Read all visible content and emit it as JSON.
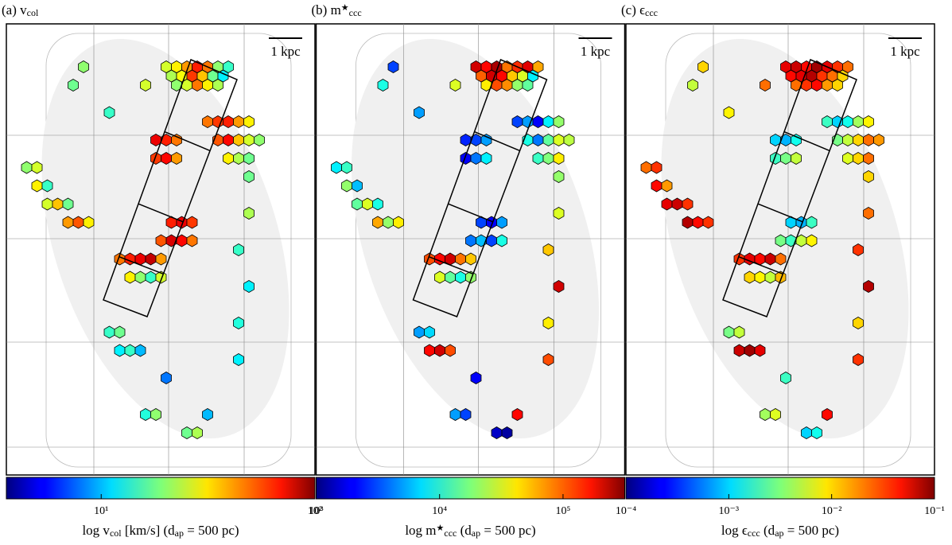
{
  "chart_data": [
    {
      "type": "hexmap",
      "title_parts": [
        "(a) v",
        {
          "sub": "col"
        }
      ],
      "scale_label": "1 kpc",
      "label_parts": [
        "log v",
        {
          "sub": "col"
        },
        " [km/s] (d",
        {
          "sub": "ap"
        },
        " = 500 pc)"
      ],
      "log_scale": true,
      "colormap": "jet",
      "xlim": [
        3.6,
        100
      ],
      "xticks": [
        {
          "value": 10,
          "label": "10¹"
        },
        {
          "value": 100,
          "label": "10²"
        }
      ],
      "values": [
        25,
        30,
        40,
        60,
        45,
        20,
        15,
        22,
        28,
        55,
        35,
        18,
        12,
        20,
        25,
        45,
        30,
        22,
        20,
        18,
        15,
        25,
        45,
        55,
        60,
        40,
        30,
        50,
        65,
        35,
        25,
        20,
        30,
        22,
        18,
        70,
        60,
        45,
        55,
        65,
        40,
        20,
        25,
        30,
        15,
        25,
        35,
        18,
        40,
        50,
        30,
        60,
        70,
        55,
        50,
        75,
        65,
        45,
        45,
        60,
        70,
        80,
        40,
        30,
        20,
        15,
        25,
        18,
        22,
        15,
        12,
        14,
        15,
        18,
        12,
        15,
        10,
        8,
        14,
        20,
        18,
        22,
        12,
        10
      ]
    },
    {
      "type": "hexmap",
      "title_parts": [
        "(b) m",
        {
          "sup": "★"
        },
        {
          "sub": "ccc"
        }
      ],
      "scale_label": "1 kpc",
      "label_parts": [
        "log m",
        {
          "sup": "★"
        },
        {
          "sub": "ccc"
        },
        " (d",
        {
          "sub": "ap"
        },
        " = 500 pc)"
      ],
      "log_scale": true,
      "colormap": "jet",
      "xlim": [
        1000,
        316000
      ],
      "xticks": [
        {
          "value": 1000,
          "label": "10³"
        },
        {
          "value": 10000,
          "label": "10⁴"
        },
        {
          "value": 100000,
          "label": "10⁵"
        }
      ],
      "values": [
        200000,
        150000,
        250000,
        80000,
        120000,
        180000,
        60000,
        90000,
        200000,
        150000,
        50000,
        30000,
        8000,
        40000,
        100000,
        70000,
        20000,
        15000,
        3000,
        10000,
        5000,
        30000,
        3000,
        5000,
        2000,
        8000,
        20000,
        10000,
        4000,
        15000,
        30000,
        25000,
        12000,
        18000,
        40000,
        2500,
        3000,
        5000,
        2000,
        4000,
        8000,
        8000,
        12000,
        20000,
        6000,
        15000,
        30000,
        10000,
        60000,
        20000,
        40000,
        3000,
        2000,
        5000,
        4000,
        6000,
        3000,
        10000,
        100000,
        150000,
        200000,
        80000,
        50000,
        30000,
        15000,
        10000,
        20000,
        20000,
        30000,
        50000,
        200000,
        40000,
        5000,
        7000,
        150000,
        200000,
        100000,
        2000,
        5000,
        3000,
        1500,
        1200,
        100000,
        150000
      ]
    },
    {
      "type": "hexmap",
      "title_parts": [
        "(c) ϵ",
        {
          "sub": "ccc"
        }
      ],
      "scale_label": "1 kpc",
      "label_parts": [
        "log ϵ",
        {
          "sub": "ccc"
        },
        " (d",
        {
          "sub": "ap"
        },
        " = 500 pc)"
      ],
      "log_scale": true,
      "colormap": "jet",
      "xlim": [
        0.0001,
        0.1
      ],
      "xticks": [
        {
          "value": 0.0001,
          "label": "10⁻⁴"
        },
        {
          "value": 0.001,
          "label": "10⁻³"
        },
        {
          "value": 0.01,
          "label": "10⁻²"
        },
        {
          "value": 0.1,
          "label": "10⁻¹"
        }
      ],
      "values": [
        0.05,
        0.06,
        0.04,
        0.08,
        0.05,
        0.03,
        0.02,
        0.04,
        0.05,
        0.07,
        0.03,
        0.02,
        0.01,
        0.02,
        0.03,
        0.04,
        0.015,
        0.01,
        0.01,
        0.005,
        0.008,
        0.02,
        0.002,
        0.001,
        0.0015,
        0.004,
        0.008,
        0.003,
        0.005,
        0.01,
        0.02,
        0.015,
        0.006,
        0.01,
        0.02,
        0.001,
        0.0008,
        0.0015,
        0.002,
        0.003,
        0.005,
        0.02,
        0.03,
        0.04,
        0.015,
        0.05,
        0.06,
        0.03,
        0.07,
        0.04,
        0.03,
        0.001,
        0.0008,
        0.002,
        0.003,
        0.002,
        0.005,
        0.008,
        0.03,
        0.05,
        0.04,
        0.06,
        0.02,
        0.01,
        0.008,
        0.005,
        0.012,
        0.01,
        0.02,
        0.03,
        0.07,
        0.01,
        0.003,
        0.005,
        0.06,
        0.08,
        0.05,
        0.002,
        0.004,
        0.006,
        0.001,
        0.0015,
        0.03,
        0.04
      ]
    }
  ]
}
